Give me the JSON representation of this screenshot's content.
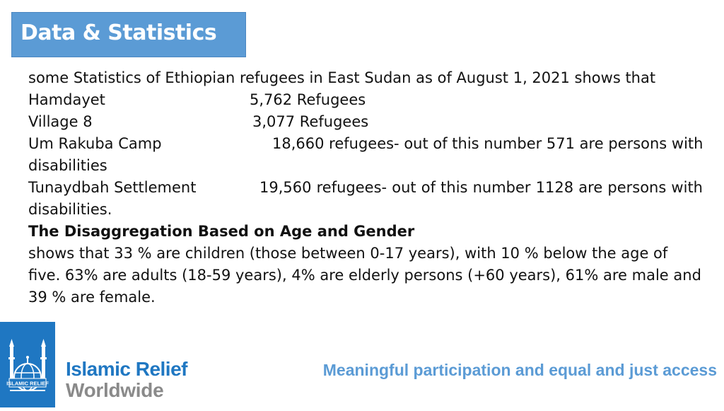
{
  "title": "Data & Statistics",
  "intro": "some Statistics of Ethiopian refugees in East Sudan as of August 1, 2021 shows that",
  "locations": [
    {
      "name": "Hamdayet",
      "value": "5,762  Refugees"
    },
    {
      "name": "Village 8",
      "value": "3,077  Refugees"
    },
    {
      "name": "Um Rakuba Camp",
      "value": "18,660 refugees- out of this number 571 are persons with",
      "continuation": "disabilities"
    },
    {
      "name": "Tunaydbah Settlement",
      "value": "19,560 refugees- out of this number 1128 are persons with",
      "continuation": "disabilities."
    }
  ],
  "disaggregation": {
    "heading": "The Disaggregation Based on Age and Gender",
    "lines": [
      "shows that 33 % are children (those between 0-17 years), with 10 % below the age of",
      "five.  63% are adults (18-59 years), 4% are elderly persons (+60 years), 61% are male and",
      "39 % are female."
    ]
  },
  "footer": {
    "brand_line1": "Islamic Relief",
    "brand_line2": "Worldwide",
    "logo_text": "ISLAMIC RELIEF",
    "tagline": "Meaningful participation and equal and just access",
    "colors": {
      "brand_blue": "#1f77c2",
      "title_blue": "#5b9bd5",
      "brand_grey": "#8a8a8a"
    }
  }
}
